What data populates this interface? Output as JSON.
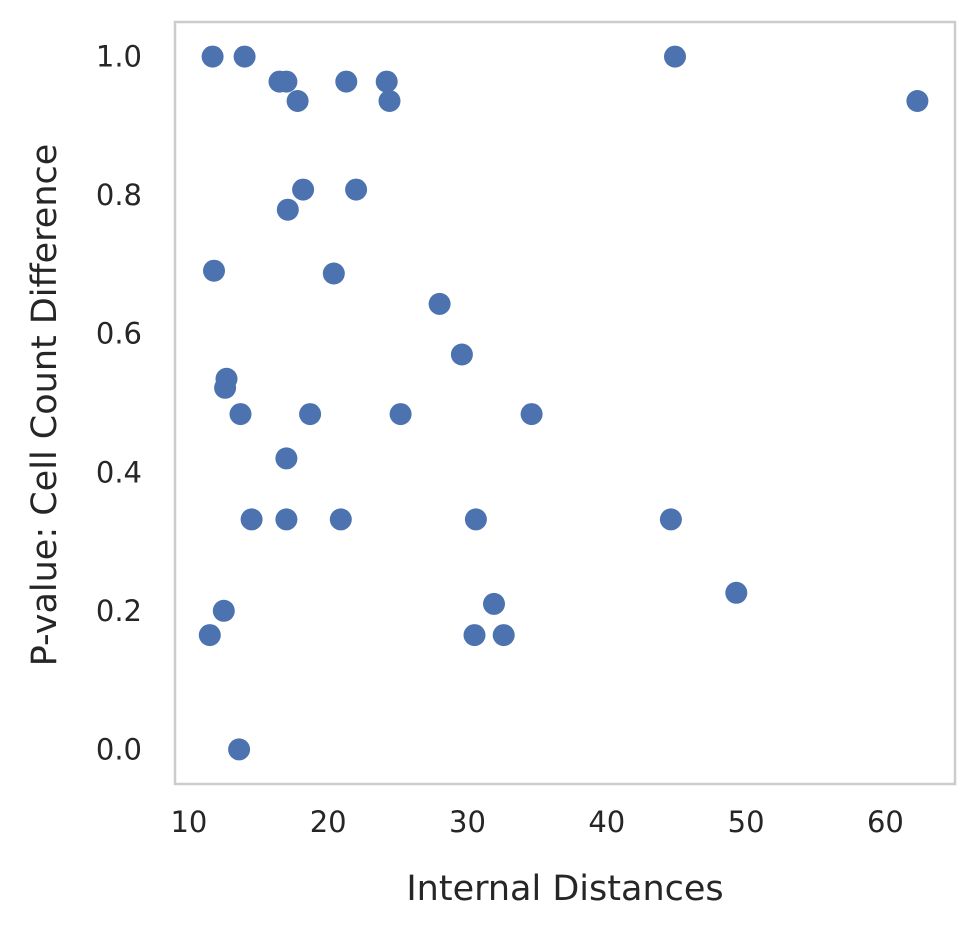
{
  "chart_data": {
    "type": "scatter",
    "title": "",
    "xlabel": "Internal Distances",
    "ylabel": "P-value: Cell Count Difference",
    "xlim": [
      9.0,
      65.0
    ],
    "ylim": [
      -0.05,
      1.05
    ],
    "xticks": [
      10,
      20,
      30,
      40,
      50,
      60
    ],
    "yticks": [
      0.0,
      0.2,
      0.4,
      0.6,
      0.8,
      1.0
    ],
    "xtick_labels": [
      "10",
      "20",
      "30",
      "40",
      "50",
      "60"
    ],
    "ytick_labels": [
      "0.0",
      "0.2",
      "0.4",
      "0.6",
      "0.8",
      "1.0"
    ],
    "grid": false,
    "marker_color": "#4c72b0",
    "frame_color": "#cccccc",
    "points": [
      {
        "x": 11.7,
        "y": 1.0
      },
      {
        "x": 14.0,
        "y": 1.0
      },
      {
        "x": 44.9,
        "y": 1.0
      },
      {
        "x": 16.5,
        "y": 0.964
      },
      {
        "x": 17.0,
        "y": 0.964
      },
      {
        "x": 21.3,
        "y": 0.964
      },
      {
        "x": 24.2,
        "y": 0.964
      },
      {
        "x": 17.8,
        "y": 0.936
      },
      {
        "x": 24.4,
        "y": 0.936
      },
      {
        "x": 62.3,
        "y": 0.936
      },
      {
        "x": 18.2,
        "y": 0.808
      },
      {
        "x": 22.0,
        "y": 0.808
      },
      {
        "x": 17.1,
        "y": 0.779
      },
      {
        "x": 11.8,
        "y": 0.691
      },
      {
        "x": 20.4,
        "y": 0.687
      },
      {
        "x": 28.0,
        "y": 0.643
      },
      {
        "x": 29.6,
        "y": 0.57
      },
      {
        "x": 12.7,
        "y": 0.535
      },
      {
        "x": 12.6,
        "y": 0.522
      },
      {
        "x": 13.7,
        "y": 0.484
      },
      {
        "x": 18.7,
        "y": 0.484
      },
      {
        "x": 25.2,
        "y": 0.484
      },
      {
        "x": 34.6,
        "y": 0.484
      },
      {
        "x": 17.0,
        "y": 0.42
      },
      {
        "x": 14.5,
        "y": 0.332
      },
      {
        "x": 17.0,
        "y": 0.332
      },
      {
        "x": 20.9,
        "y": 0.332
      },
      {
        "x": 30.6,
        "y": 0.332
      },
      {
        "x": 44.6,
        "y": 0.332
      },
      {
        "x": 49.3,
        "y": 0.226
      },
      {
        "x": 31.9,
        "y": 0.21
      },
      {
        "x": 12.5,
        "y": 0.2
      },
      {
        "x": 11.5,
        "y": 0.165
      },
      {
        "x": 30.5,
        "y": 0.165
      },
      {
        "x": 32.6,
        "y": 0.165
      },
      {
        "x": 13.6,
        "y": 0.0
      }
    ]
  }
}
